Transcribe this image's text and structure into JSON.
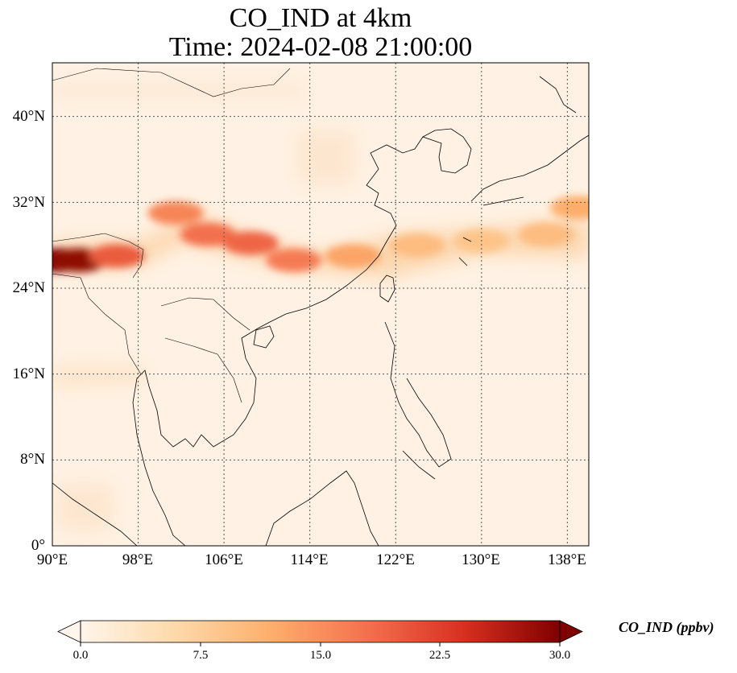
{
  "figure": {
    "title_line1": "CO_IND at 4km",
    "title_line2": "Time: 2024-02-08 21:00:00"
  },
  "axes": {
    "lon_labels": [
      "90°E",
      "98°E",
      "106°E",
      "114°E",
      "122°E",
      "130°E",
      "138°E"
    ],
    "lat_labels": [
      "0°",
      "8°N",
      "16°N",
      "24°N",
      "32°N",
      "40°N"
    ]
  },
  "colorbar": {
    "label": "CO_IND (ppbv)",
    "ticks": [
      "0.0",
      "7.5",
      "15.0",
      "22.5",
      "30.0"
    ],
    "colors": [
      "#fff5eb",
      "#fdd9a9",
      "#fdae6b",
      "#f3704d",
      "#d7301f",
      "#7f0000"
    ]
  },
  "chart_data": {
    "type": "heatmap",
    "variable": "CO_IND",
    "units": "ppbv",
    "level": "4km",
    "time": "2024-02-08 21:00:00",
    "lon_range": [
      90,
      140
    ],
    "lat_range": [
      0,
      45
    ],
    "lon_ticks": [
      90,
      98,
      106,
      114,
      122,
      130,
      138
    ],
    "lat_ticks": [
      0,
      8,
      16,
      24,
      32,
      40
    ],
    "color_range": [
      0,
      30
    ],
    "extend": "both",
    "plumes": [
      {
        "lon": 90.5,
        "lat": 26.6,
        "value": 30
      },
      {
        "lon": 92.5,
        "lat": 26.6,
        "value": 29
      },
      {
        "lon": 96.0,
        "lat": 27.0,
        "value": 20
      },
      {
        "lon": 101.5,
        "lat": 31.0,
        "value": 16
      },
      {
        "lon": 104.5,
        "lat": 29.0,
        "value": 18
      },
      {
        "lon": 108.5,
        "lat": 28.2,
        "value": 19
      },
      {
        "lon": 112.5,
        "lat": 26.6,
        "value": 17
      },
      {
        "lon": 118.0,
        "lat": 27.0,
        "value": 13
      },
      {
        "lon": 124.0,
        "lat": 28.0,
        "value": 10
      },
      {
        "lon": 130.0,
        "lat": 28.4,
        "value": 9
      },
      {
        "lon": 136.0,
        "lat": 29.0,
        "value": 10
      },
      {
        "lon": 139.0,
        "lat": 31.5,
        "value": 12
      }
    ]
  }
}
